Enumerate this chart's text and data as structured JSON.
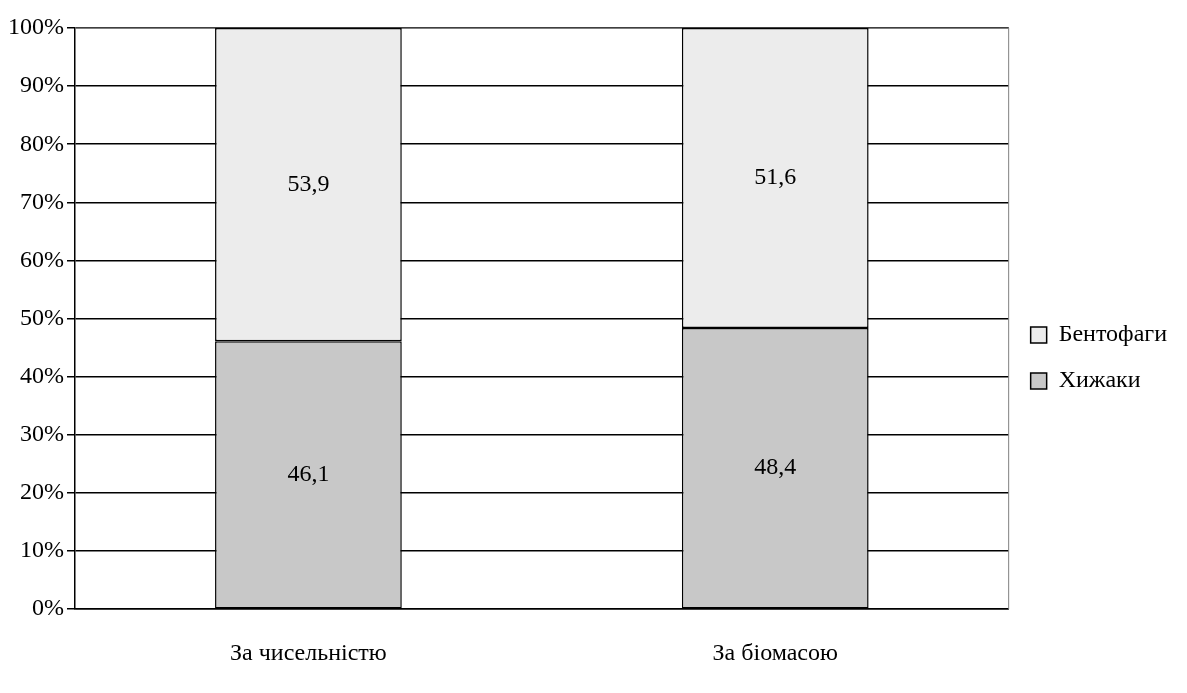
{
  "chart_data": {
    "type": "bar",
    "stacked": true,
    "categories": [
      "За чисельністю",
      "За біомасою"
    ],
    "series": [
      {
        "name": "Хижаки",
        "color": "#c8c8c8",
        "values": [
          46.1,
          48.4
        ],
        "value_labels": [
          "46,1",
          "48,4"
        ]
      },
      {
        "name": "Бентофаги",
        "color": "#ececec",
        "values": [
          53.9,
          51.6
        ],
        "value_labels": [
          "53,9",
          "51,6"
        ]
      }
    ],
    "ylim": [
      0,
      100
    ],
    "yticks": [
      {
        "value": 0,
        "label": "0%"
      },
      {
        "value": 10,
        "label": "10%"
      },
      {
        "value": 20,
        "label": "20%"
      },
      {
        "value": 30,
        "label": "30%"
      },
      {
        "value": 40,
        "label": "40%"
      },
      {
        "value": 50,
        "label": "50%"
      },
      {
        "value": 60,
        "label": "60%"
      },
      {
        "value": 70,
        "label": "70%"
      },
      {
        "value": 80,
        "label": "80%"
      },
      {
        "value": 90,
        "label": "90%"
      },
      {
        "value": 100,
        "label": "100%"
      }
    ],
    "grid": "y",
    "legend": "right"
  }
}
